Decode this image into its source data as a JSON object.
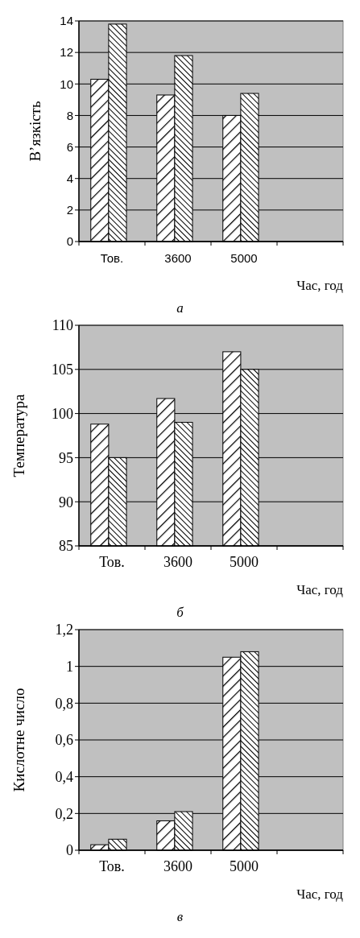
{
  "chart_data": [
    {
      "type": "bar",
      "ylabel": "В’язкість",
      "xlabel": "Час, год",
      "annotations": [
        "а"
      ],
      "categories": [
        "Тов.",
        "3600",
        "5000",
        null
      ],
      "series": [
        {
          "color": "#000000",
          "values": [
            10.3,
            9.3,
            8.0,
            null
          ]
        },
        {
          "color": "#000000",
          "values": [
            13.8,
            11.8,
            9.4,
            null
          ]
        }
      ],
      "ylim": [
        0,
        14
      ],
      "yticks": [
        0,
        2,
        4,
        6,
        8,
        10,
        12,
        14
      ],
      "grid": "y"
    },
    {
      "type": "bar",
      "ylabel": "Температура",
      "xlabel": "Час, год",
      "annotations": [
        "б"
      ],
      "categories": [
        "Тов.",
        "3600",
        "5000",
        null
      ],
      "series": [
        {
          "color": "#000000",
          "values": [
            98.8,
            101.7,
            107,
            null
          ]
        },
        {
          "color": "#000000",
          "values": [
            95,
            99,
            105,
            null
          ]
        }
      ],
      "ylim": [
        85,
        110
      ],
      "yticks": [
        85,
        90,
        95,
        100,
        105,
        110
      ],
      "grid": "y"
    },
    {
      "type": "bar",
      "ylabel": "Кислотне число",
      "xlabel": "Час, год",
      "annotations": [
        "в"
      ],
      "categories": [
        "Тов.",
        "3600",
        "5000",
        null
      ],
      "series": [
        {
          "color": "#000000",
          "values": [
            0.03,
            0.16,
            1.05,
            null
          ]
        },
        {
          "color": "#000000",
          "values": [
            0.06,
            0.21,
            1.08,
            null
          ]
        }
      ],
      "ylim": [
        0,
        1.2
      ],
      "yticks": [
        0,
        {
          "value": 0.2,
          "label": "0,2"
        },
        {
          "value": 0.4,
          "label": "0,4"
        },
        {
          "value": 0.6,
          "label": "0,6"
        },
        {
          "value": 0.8,
          "label": "0,8"
        },
        1,
        {
          "value": 1.2,
          "label": "1,2"
        }
      ],
      "grid": "y"
    }
  ]
}
